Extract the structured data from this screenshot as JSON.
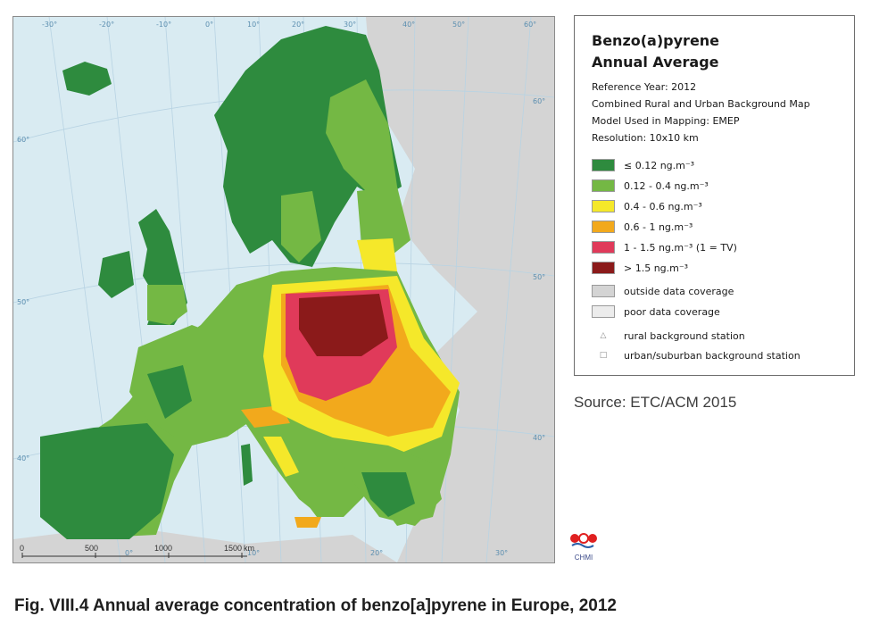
{
  "map": {
    "graticule_labels": {
      "lon_top": [
        "-30°",
        "-20°",
        "-10°",
        "0°",
        "10°",
        "20°",
        "30°",
        "40°",
        "50°",
        "60°"
      ],
      "lat_left": [
        "60°",
        "50°",
        "40°"
      ],
      "lat_right": [
        "60°",
        "50°",
        "40°"
      ],
      "lon_bottom": [
        "0°",
        "10°",
        "20°",
        "30°"
      ]
    },
    "scale_bar": {
      "ticks": [
        "0",
        "500",
        "1000",
        "1500"
      ],
      "unit": "km"
    },
    "colors": {
      "sea": "#d9ebf2",
      "outside": "#d4d4d4",
      "poor": "#ececec",
      "c1": "#2e8b3e",
      "c2": "#74b844",
      "c3": "#f5e82a",
      "c4": "#f2a91c",
      "c5": "#e03a5a",
      "c6": "#8b1a1a"
    }
  },
  "legend": {
    "title_line1": "Benzo(a)pyrene",
    "title_line2": "Annual Average",
    "meta": [
      "Reference Year: 2012",
      "Combined Rural and Urban Background Map",
      "Model Used in Mapping: EMEP",
      "Resolution: 10x10 km"
    ],
    "classes": [
      {
        "label": "≤ 0.12 ng.m⁻³",
        "color": "#2e8b3e"
      },
      {
        "label": "0.12 - 0.4 ng.m⁻³",
        "color": "#74b844"
      },
      {
        "label": "0.4 - 0.6 ng.m⁻³",
        "color": "#f5e82a"
      },
      {
        "label": "0.6 - 1 ng.m⁻³",
        "color": "#f2a91c"
      },
      {
        "label": "1 - 1.5 ng.m⁻³  (1 = TV)",
        "color": "#e03a5a"
      },
      {
        "label": "> 1.5 ng.m⁻³",
        "color": "#8b1a1a"
      }
    ],
    "coverage": [
      {
        "label": "outside data coverage",
        "color": "#d4d4d4"
      },
      {
        "label": "poor data coverage",
        "color": "#ececec"
      }
    ],
    "stations": [
      {
        "symbol": "△",
        "label": "rural background station"
      },
      {
        "symbol": "□",
        "label": "urban/suburban background station"
      }
    ]
  },
  "source": "Source: ETC/ACM 2015",
  "logo_text": "CHMI",
  "caption": "Fig. VIII.4  Annual average concentration of benzo[a]pyrene in Europe, 2012"
}
